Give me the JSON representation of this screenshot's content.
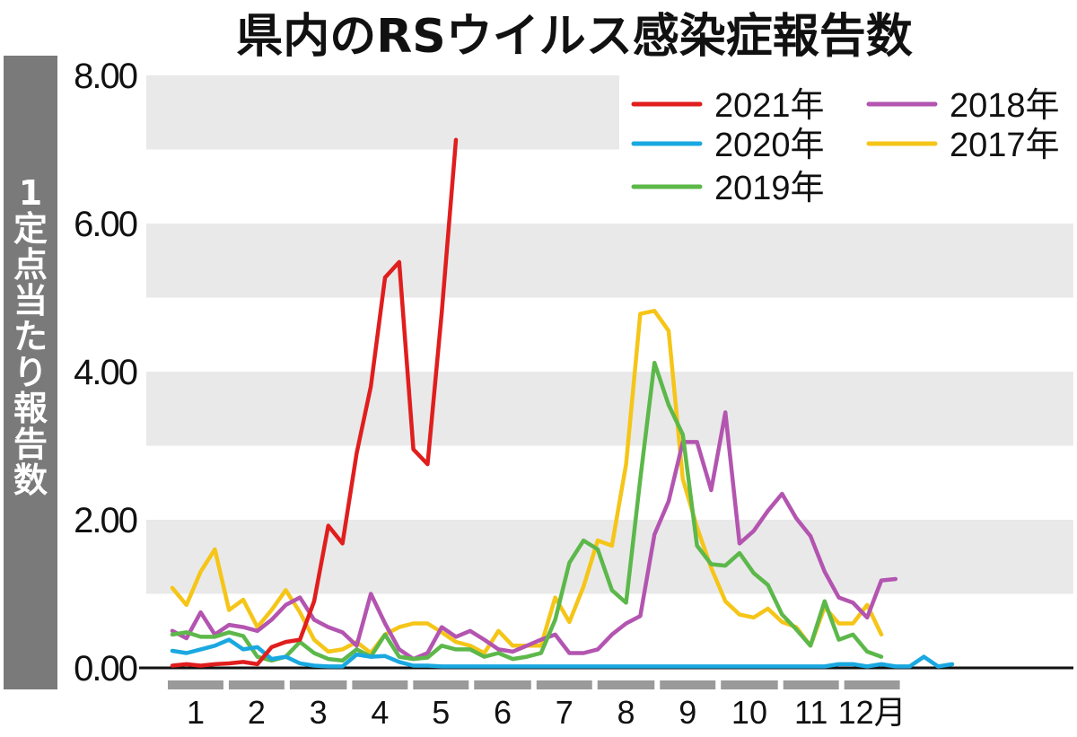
{
  "chart_data": {
    "type": "line",
    "title": "県内のRSウイルス感染症報告数",
    "ylabel": "1定点当たり報告数",
    "ylim": [
      0,
      8
    ],
    "yticks": [
      "0.00",
      "2.00",
      "4.00",
      "6.00",
      "8.00"
    ],
    "month_labels": [
      "1",
      "2",
      "3",
      "4",
      "5",
      "6",
      "7",
      "8",
      "9",
      "10",
      "11",
      "12月"
    ],
    "x_unit": "week",
    "grid": "alternating horizontal bands",
    "legend_position": "top-right",
    "series": [
      {
        "name": "2021年",
        "color": "#e01e1e",
        "values": [
          0.03,
          0.05,
          0.03,
          0.05,
          0.06,
          0.08,
          0.05,
          0.28,
          0.35,
          0.38,
          0.9,
          1.92,
          1.68,
          2.9,
          3.8,
          5.27,
          5.48,
          2.95,
          2.75,
          4.8,
          7.13
        ]
      },
      {
        "name": "2020年",
        "color": "#1aa8e0",
        "values": [
          0.23,
          0.2,
          0.25,
          0.3,
          0.38,
          0.25,
          0.28,
          0.12,
          0.15,
          0.06,
          0.03,
          0.02,
          0.02,
          0.18,
          0.15,
          0.16,
          0.08,
          0.03,
          0.03,
          0.02,
          0.02,
          0.02,
          0.02,
          0.02,
          0.02,
          0.02,
          0.02,
          0.02,
          0.02,
          0.02,
          0.02,
          0.02,
          0.02,
          0.02,
          0.02,
          0.02,
          0.02,
          0.02,
          0.02,
          0.02,
          0.02,
          0.02,
          0.02,
          0.02,
          0.02,
          0.02,
          0.02,
          0.05,
          0.05,
          0.02,
          0.05,
          0.02,
          0.02,
          0.15,
          0.02,
          0.05
        ]
      },
      {
        "name": "2019年",
        "color": "#5cb84a",
        "values": [
          0.45,
          0.48,
          0.42,
          0.42,
          0.48,
          0.43,
          0.15,
          0.1,
          0.15,
          0.35,
          0.2,
          0.12,
          0.1,
          0.25,
          0.15,
          0.45,
          0.15,
          0.12,
          0.14,
          0.3,
          0.25,
          0.25,
          0.15,
          0.2,
          0.12,
          0.15,
          0.2,
          0.65,
          1.42,
          1.72,
          1.6,
          1.05,
          0.88,
          2.55,
          4.12,
          3.55,
          3.15,
          1.65,
          1.4,
          1.38,
          1.55,
          1.28,
          1.12,
          0.72,
          0.52,
          0.3,
          0.9,
          0.38,
          0.45,
          0.22,
          0.15
        ]
      },
      {
        "name": "2018年",
        "color": "#b355b0",
        "values": [
          0.5,
          0.4,
          0.75,
          0.45,
          0.58,
          0.55,
          0.5,
          0.65,
          0.85,
          0.95,
          0.65,
          0.55,
          0.48,
          0.3,
          1.0,
          0.6,
          0.25,
          0.12,
          0.2,
          0.55,
          0.42,
          0.5,
          0.38,
          0.25,
          0.22,
          0.3,
          0.38,
          0.45,
          0.2,
          0.2,
          0.25,
          0.45,
          0.6,
          0.7,
          1.8,
          2.25,
          3.05,
          3.05,
          2.4,
          3.45,
          1.68,
          1.85,
          2.12,
          2.35,
          2.02,
          1.78,
          1.3,
          0.95,
          0.88,
          0.68,
          1.18,
          1.2
        ]
      },
      {
        "name": "2017年",
        "color": "#f5c518",
        "values": [
          1.08,
          0.85,
          1.3,
          1.6,
          0.78,
          0.92,
          0.55,
          0.78,
          1.05,
          0.75,
          0.38,
          0.22,
          0.25,
          0.35,
          0.2,
          0.45,
          0.55,
          0.6,
          0.6,
          0.48,
          0.35,
          0.3,
          0.2,
          0.5,
          0.3,
          0.3,
          0.3,
          0.95,
          0.62,
          1.1,
          1.72,
          1.65,
          2.75,
          4.78,
          4.82,
          4.55,
          2.55,
          1.9,
          1.35,
          0.9,
          0.72,
          0.68,
          0.8,
          0.62,
          0.55,
          0.3,
          0.82,
          0.6,
          0.6,
          0.85,
          0.45
        ]
      }
    ]
  }
}
